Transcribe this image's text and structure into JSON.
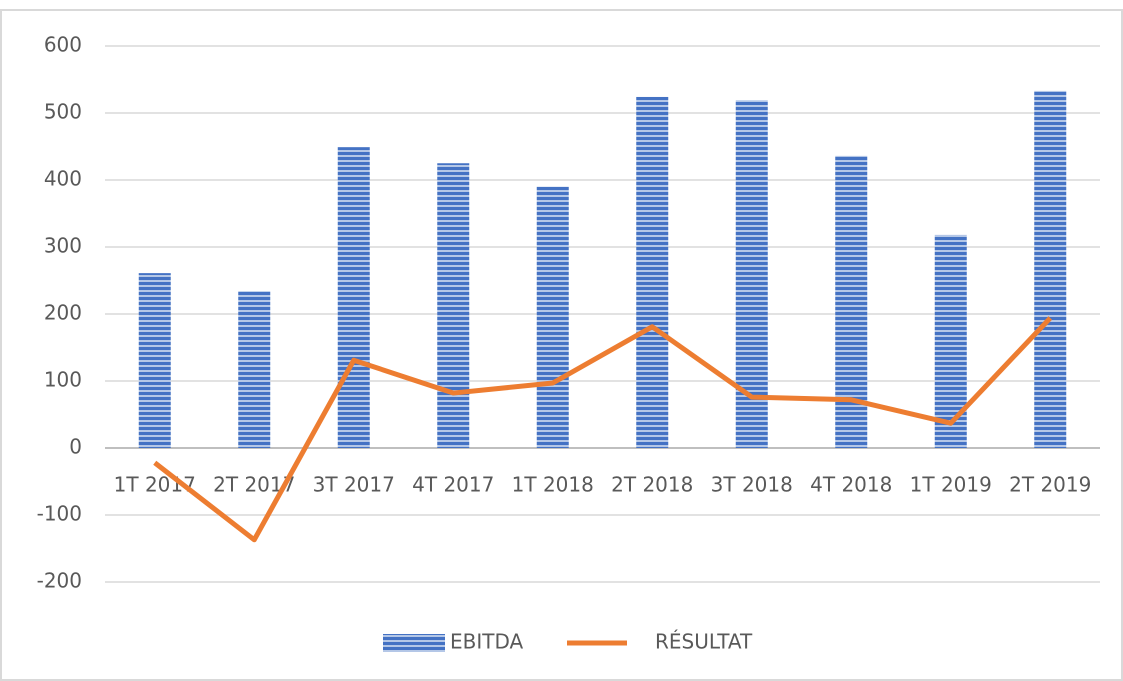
{
  "chart_data": {
    "type": "bar",
    "categories": [
      "1T 2017",
      "2T 2017",
      "3T 2017",
      "4T 2017",
      "1T 2018",
      "2T 2018",
      "3T 2018",
      "4T 2018",
      "1T 2019",
      "2T 2019"
    ],
    "series": [
      {
        "name": "EBITDA",
        "type": "bar",
        "color": "#4472c4",
        "values": [
          261,
          234,
          449,
          425,
          390,
          524,
          519,
          436,
          318,
          533
        ]
      },
      {
        "name": "RÉSULTAT",
        "type": "line",
        "color": "#ed7d31",
        "values": [
          -22,
          -137,
          131,
          82,
          97,
          181,
          76,
          72,
          37,
          194
        ]
      }
    ],
    "ylim": [
      -200,
      600
    ],
    "yticks": [
      -200,
      -100,
      0,
      100,
      200,
      300,
      400,
      500,
      600
    ],
    "grid": true,
    "legend": "bottom"
  }
}
